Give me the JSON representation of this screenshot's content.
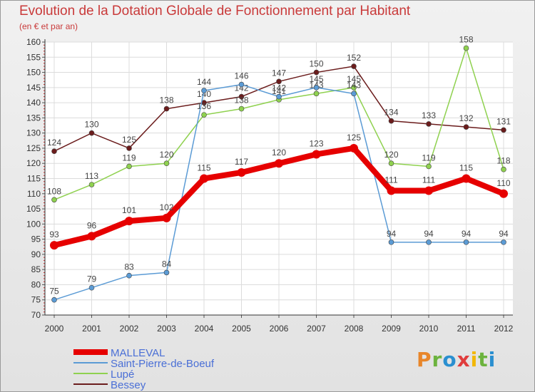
{
  "chart_data": {
    "type": "line",
    "title": "Evolution de la Dotation Globale de Fonctionnement par Habitant",
    "subtitle": "(en € et par an)",
    "x": [
      "2000",
      "2001",
      "2002",
      "2003",
      "2004",
      "2005",
      "2006",
      "2007",
      "2008",
      "2009",
      "2010",
      "2011",
      "2012"
    ],
    "ylim": [
      70,
      160
    ],
    "yticks": [
      70,
      75,
      80,
      85,
      90,
      95,
      100,
      105,
      110,
      115,
      120,
      125,
      130,
      135,
      140,
      145,
      150,
      155,
      160
    ],
    "grid": true,
    "legend_position": "bottom-left",
    "series": [
      {
        "name": "MALLEVAL",
        "color": "#e60000",
        "values": [
          93,
          96,
          101,
          102,
          115,
          117,
          120,
          123,
          125,
          111,
          111,
          115,
          110
        ]
      },
      {
        "name": "Saint-Pierre-de-Boeuf",
        "color": "#5b9bd5",
        "values": [
          75,
          79,
          83,
          84,
          144,
          146,
          142,
          145,
          143,
          94,
          94,
          94,
          94
        ]
      },
      {
        "name": "Lupé",
        "color": "#8fd14f",
        "values": [
          108,
          113,
          119,
          120,
          136,
          138,
          141,
          143,
          145,
          120,
          119,
          158,
          118
        ]
      },
      {
        "name": "Bessey",
        "color": "#6b1c1c",
        "values": [
          124,
          130,
          125,
          138,
          140,
          142,
          147,
          150,
          152,
          134,
          133,
          132,
          131
        ]
      }
    ]
  },
  "logo": {
    "text": "Proxiti",
    "letters": [
      "P",
      "r",
      "o",
      "x",
      "i",
      "t",
      "i"
    ]
  }
}
